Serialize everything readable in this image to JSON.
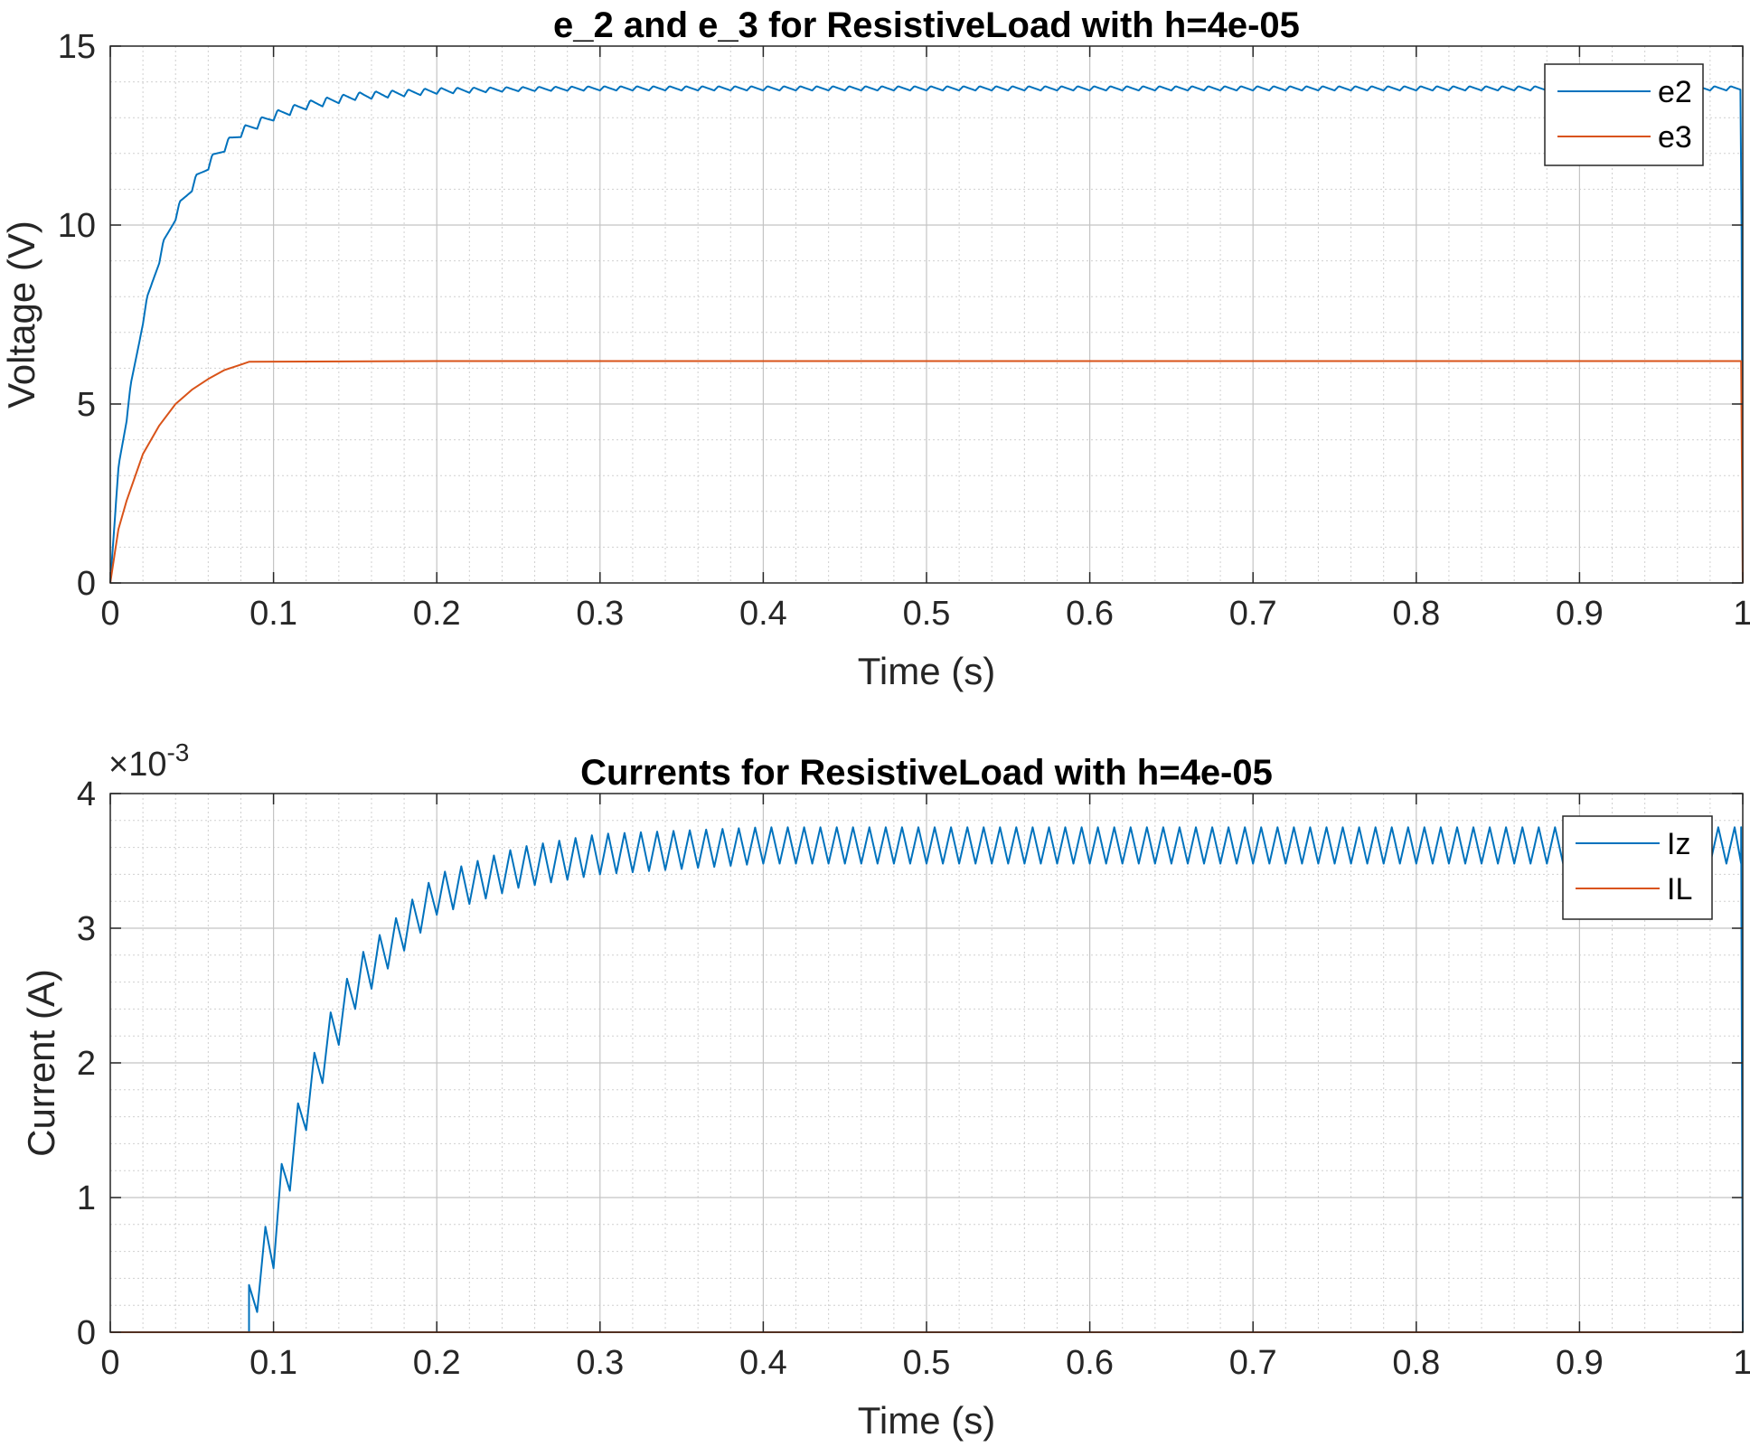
{
  "chart_data": [
    {
      "type": "line",
      "title": "e_2 and e_3 for ResistiveLoad with h=4e-05",
      "xlabel": "Time (s)",
      "ylabel": "Voltage (V)",
      "xlim": [
        0,
        1
      ],
      "ylim": [
        0,
        15
      ],
      "xticks": [
        "0",
        "0.1",
        "0.2",
        "0.3",
        "0.4",
        "0.5",
        "0.6",
        "0.7",
        "0.8",
        "0.9",
        "1"
      ],
      "yticks": [
        "0",
        "5",
        "10",
        "15"
      ],
      "exponent_label": "",
      "grid": true,
      "minor_grid": true,
      "legend_position": "top-right",
      "series": [
        {
          "name": "e2",
          "color": "#0072BD",
          "points": [
            [
              0,
              0
            ],
            [
              0.005,
              3.2
            ],
            [
              0.01,
              4.7
            ],
            [
              0.02,
              7.4
            ],
            [
              0.03,
              9.1
            ],
            [
              0.04,
              10.3
            ],
            [
              0.05,
              11.1
            ],
            [
              0.06,
              11.7
            ],
            [
              0.07,
              12.2
            ],
            [
              0.08,
              12.6
            ],
            [
              0.1,
              13.05
            ],
            [
              0.12,
              13.35
            ],
            [
              0.15,
              13.6
            ],
            [
              0.2,
              13.75
            ],
            [
              0.25,
              13.8
            ],
            [
              0.3,
              13.82
            ],
            [
              0.5,
              13.82
            ],
            [
              0.7,
              13.82
            ],
            [
              0.9,
              13.82
            ],
            [
              0.999,
              13.82
            ],
            [
              1.0,
              0
            ]
          ],
          "ripple_amplitude": 0.12,
          "ripple_period": 0.01
        },
        {
          "name": "e3",
          "color": "#D95319",
          "points": [
            [
              0,
              0
            ],
            [
              0.005,
              1.5
            ],
            [
              0.01,
              2.3
            ],
            [
              0.02,
              3.6
            ],
            [
              0.03,
              4.4
            ],
            [
              0.04,
              5.0
            ],
            [
              0.05,
              5.4
            ],
            [
              0.06,
              5.7
            ],
            [
              0.07,
              5.95
            ],
            [
              0.08,
              6.1
            ],
            [
              0.085,
              6.18
            ],
            [
              0.2,
              6.2
            ],
            [
              0.5,
              6.2
            ],
            [
              0.999,
              6.2
            ],
            [
              1.0,
              0
            ]
          ]
        }
      ]
    },
    {
      "type": "line",
      "title": "Currents for ResistiveLoad with h=4e-05",
      "xlabel": "Time (s)",
      "ylabel": "Current (A)",
      "xlim": [
        0,
        1
      ],
      "ylim": [
        0,
        0.004
      ],
      "xticks": [
        "0",
        "0.1",
        "0.2",
        "0.3",
        "0.4",
        "0.5",
        "0.6",
        "0.7",
        "0.8",
        "0.9",
        "1"
      ],
      "yticks": [
        "0",
        "1",
        "2",
        "3",
        "4"
      ],
      "exponent_label": "×10",
      "exponent_power": "-3",
      "grid": true,
      "minor_grid": true,
      "legend_position": "top-right",
      "series": [
        {
          "name": "Iz",
          "color": "#0072BD",
          "sawtooth": true,
          "period": 0.01,
          "start": 0.085,
          "peaks": [
            [
              0.085,
              0.00035
            ],
            [
              0.1,
              0.001
            ],
            [
              0.11,
              0.0015
            ],
            [
              0.12,
              0.0019
            ],
            [
              0.13,
              0.00225
            ],
            [
              0.14,
              0.0025
            ],
            [
              0.15,
              0.00275
            ],
            [
              0.16,
              0.0029
            ],
            [
              0.17,
              0.003
            ],
            [
              0.18,
              0.00315
            ],
            [
              0.2,
              0.0034
            ],
            [
              0.25,
              0.0036
            ],
            [
              0.3,
              0.0037
            ],
            [
              0.4,
              0.00375
            ],
            [
              0.999,
              0.00375
            ]
          ],
          "valleys": [
            [
              0.095,
              0.00015
            ],
            [
              0.105,
              0.0008
            ],
            [
              0.115,
              0.0013
            ],
            [
              0.125,
              0.0017
            ],
            [
              0.135,
              0.002
            ],
            [
              0.15,
              0.0024
            ],
            [
              0.17,
              0.0027
            ],
            [
              0.2,
              0.0031
            ],
            [
              0.25,
              0.0033
            ],
            [
              0.3,
              0.0034
            ],
            [
              0.4,
              0.00348
            ],
            [
              0.999,
              0.00348
            ]
          ],
          "end_drop_at": 0.999
        },
        {
          "name": "IL",
          "color": "#D95319",
          "points": [
            [
              0,
              0
            ],
            [
              1,
              0
            ]
          ]
        }
      ]
    }
  ]
}
